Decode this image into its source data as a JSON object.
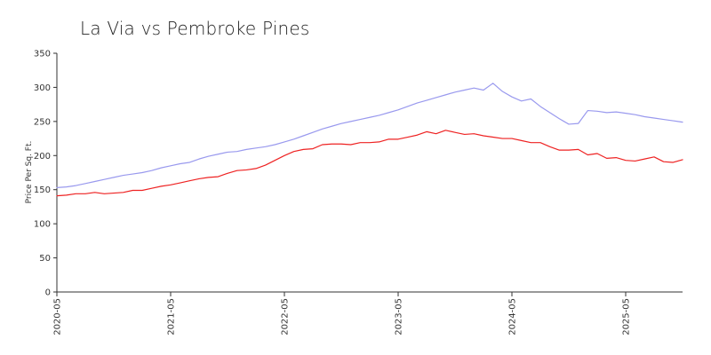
{
  "chart_data": {
    "type": "line",
    "title": "La Via vs Pembroke Pines",
    "xlabel": "",
    "ylabel": "Price Per Sq. Ft.",
    "ylim": [
      0,
      350
    ],
    "yticks": [
      0,
      50,
      100,
      150,
      200,
      250,
      300,
      350
    ],
    "xticks": [
      "2020-05",
      "2021-05",
      "2022-05",
      "2023-05",
      "2024-05",
      "2025-05"
    ],
    "grid": false,
    "legend": "none",
    "x": [
      "2020-05",
      "2020-06",
      "2020-07",
      "2020-08",
      "2020-09",
      "2020-10",
      "2020-11",
      "2020-12",
      "2021-01",
      "2021-02",
      "2021-03",
      "2021-04",
      "2021-05",
      "2021-06",
      "2021-07",
      "2021-08",
      "2021-09",
      "2021-10",
      "2021-11",
      "2021-12",
      "2022-01",
      "2022-02",
      "2022-03",
      "2022-04",
      "2022-05",
      "2022-06",
      "2022-07",
      "2022-08",
      "2022-09",
      "2022-10",
      "2022-11",
      "2022-12",
      "2023-01",
      "2023-02",
      "2023-03",
      "2023-04",
      "2023-05",
      "2023-06",
      "2023-07",
      "2023-08",
      "2023-09",
      "2023-10",
      "2023-11",
      "2023-12",
      "2024-01",
      "2024-02",
      "2024-03",
      "2024-04",
      "2024-05",
      "2024-06",
      "2024-07",
      "2024-08",
      "2024-09",
      "2024-10",
      "2024-11",
      "2024-12",
      "2025-01",
      "2025-02",
      "2025-03",
      "2025-04",
      "2025-05",
      "2025-06",
      "2025-07",
      "2025-08",
      "2025-09",
      "2025-10",
      "2025-11"
    ],
    "series": [
      {
        "color": "#9999ee",
        "values": [
          153,
          154,
          156,
          159,
          162,
          165,
          168,
          171,
          173,
          175,
          178,
          182,
          185,
          188,
          190,
          195,
          199,
          202,
          205,
          206,
          209,
          211,
          213,
          216,
          220,
          224,
          229,
          234,
          239,
          243,
          247,
          250,
          253,
          256,
          259,
          263,
          267,
          272,
          277,
          281,
          285,
          289,
          293,
          296,
          299,
          296,
          306,
          294,
          286,
          280,
          283,
          272,
          263,
          254,
          246,
          247,
          266,
          265,
          263,
          264,
          262,
          260,
          257,
          255,
          253,
          251,
          249
        ]
      },
      {
        "color": "#ee2222",
        "values": [
          141,
          142,
          144,
          144,
          146,
          144,
          145,
          146,
          149,
          149,
          152,
          155,
          157,
          160,
          163,
          166,
          168,
          169,
          174,
          178,
          179,
          181,
          186,
          193,
          200,
          206,
          209,
          210,
          216,
          217,
          217,
          216,
          219,
          219,
          220,
          224,
          224,
          227,
          230,
          235,
          232,
          237,
          234,
          231,
          232,
          229,
          227,
          225,
          225,
          222,
          219,
          219,
          213,
          208,
          208,
          209,
          201,
          203,
          196,
          197,
          193,
          192,
          195,
          198,
          191,
          190,
          194
        ]
      }
    ]
  }
}
